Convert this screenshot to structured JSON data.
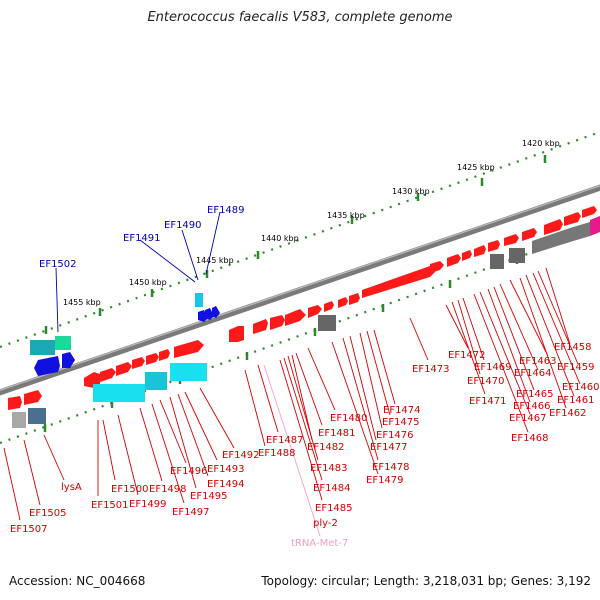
{
  "title": "Enterococcus faecalis V583, complete genome",
  "footer": {
    "accession": "Accession: NC_004668",
    "summary": "Topology: circular; Length: 3,218,031 bp; Genes: 3,192"
  },
  "colors": {
    "backbone": "#7a7a7a",
    "tick": "#2a8a2a",
    "forward_gene": "#ff1a1a",
    "reverse_gene": "#ff1a1a",
    "other_gene": "#666666",
    "label_red": "#d40000",
    "label_blue": "#0000b0",
    "label_pink": "#f2a0c8",
    "cyan": "#19e0ee",
    "blue": "#1010e0",
    "teal": "#2ab39a"
  },
  "kbp_labels": [
    "1420 kbp",
    "1425 kbp",
    "1430 kbp",
    "1435 kbp",
    "1440 kbp",
    "1445 kbp",
    "1450 kbp",
    "1455 kbp"
  ],
  "labels_top": [
    "EF1502",
    "EF1491",
    "EF1490",
    "EF1489"
  ],
  "labels_bottom": [
    "EF1507",
    "EF1505",
    "lysA",
    "EF1501",
    "EF1500",
    "EF1499",
    "EF1498",
    "EF1497",
    "EF1496",
    "EF1495",
    "EF1494",
    "EF1493",
    "EF1492",
    "EF1488",
    "EF1487",
    "EF1485",
    "EF1484",
    "EF1483",
    "EF1482",
    "EF1481",
    "EF1480",
    "EF1479",
    "EF1478",
    "EF1477",
    "EF1476",
    "EF1475",
    "EF1474",
    "EF1473",
    "EF1472",
    "EF1471",
    "EF1470",
    "EF1469",
    "EF1468",
    "EF1467",
    "EF1466",
    "EF1465",
    "EF1464",
    "EF1463",
    "EF1462",
    "EF1461",
    "EF1460",
    "EF1459",
    "EF1458",
    "ply-2",
    "tRNA-Met-7"
  ]
}
